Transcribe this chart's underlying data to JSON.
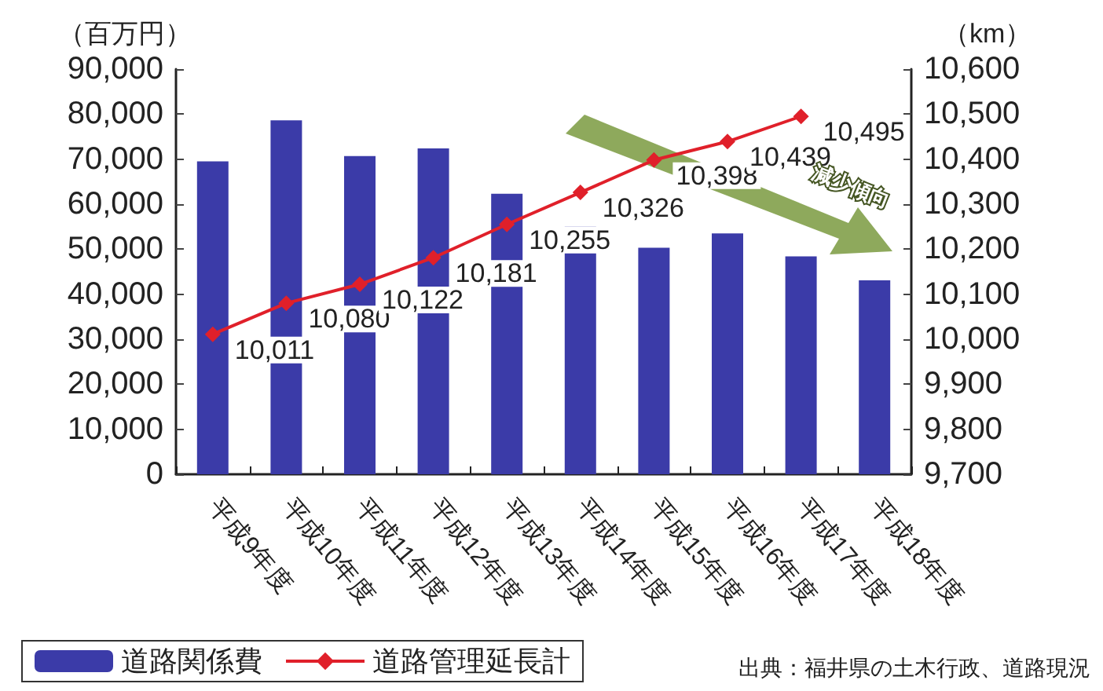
{
  "chart_data": {
    "type": "bar",
    "categories": [
      "平成9年度",
      "平成10年度",
      "平成11年度",
      "平成12年度",
      "平成13年度",
      "平成14年度",
      "平成15年度",
      "平成16年度",
      "平成17年度",
      "平成18年度"
    ],
    "series": [
      {
        "name": "道路関係費",
        "color": "#3b3ba8",
        "values": [
          69500,
          78600,
          70700,
          72400,
          62300,
          55000,
          50300,
          53500,
          48400,
          43100
        ]
      },
      {
        "name": "道路管理延長計",
        "type": "line",
        "axis": "y2",
        "color": "#e0202a",
        "marker": "diamond",
        "values": [
          10011,
          10080,
          10122,
          10181,
          10255,
          10326,
          10398,
          10439,
          10495,
          null
        ],
        "value_labels": [
          "10,011",
          "10,080",
          "10,122",
          "10,181",
          "10,255",
          "10,326",
          "10,398",
          "10,439",
          "10,495",
          null
        ]
      }
    ],
    "ylabel": "（百万円）",
    "y2label": "（km）",
    "ylim": [
      0,
      90000
    ],
    "yticks": [
      {
        "value": 0,
        "label": "0"
      },
      {
        "value": 10000,
        "label": "10,000"
      },
      {
        "value": 20000,
        "label": "20,000"
      },
      {
        "value": 30000,
        "label": "30,000"
      },
      {
        "value": 40000,
        "label": "40,000"
      },
      {
        "value": 50000,
        "label": "50,000"
      },
      {
        "value": 60000,
        "label": "60,000"
      },
      {
        "value": 70000,
        "label": "70,000"
      },
      {
        "value": 80000,
        "label": "80,000"
      },
      {
        "value": 90000,
        "label": "90,000"
      }
    ],
    "y2lim": [
      9700,
      10600
    ],
    "y2ticks": [
      {
        "value": 9700,
        "label": "9,700"
      },
      {
        "value": 9800,
        "label": "9,800"
      },
      {
        "value": 9900,
        "label": "9,900"
      },
      {
        "value": 10000,
        "label": "10,000"
      },
      {
        "value": 10100,
        "label": "10,100"
      },
      {
        "value": 10200,
        "label": "10,200"
      },
      {
        "value": 10300,
        "label": "10,300"
      },
      {
        "value": 10400,
        "label": "10,400"
      },
      {
        "value": 10500,
        "label": "10,500"
      },
      {
        "value": 10600,
        "label": "10,600"
      }
    ],
    "grid": false,
    "legend": "bottom left",
    "annotations": [
      "減少傾向",
      "出典：福井県の土木行政、道路現況"
    ]
  }
}
